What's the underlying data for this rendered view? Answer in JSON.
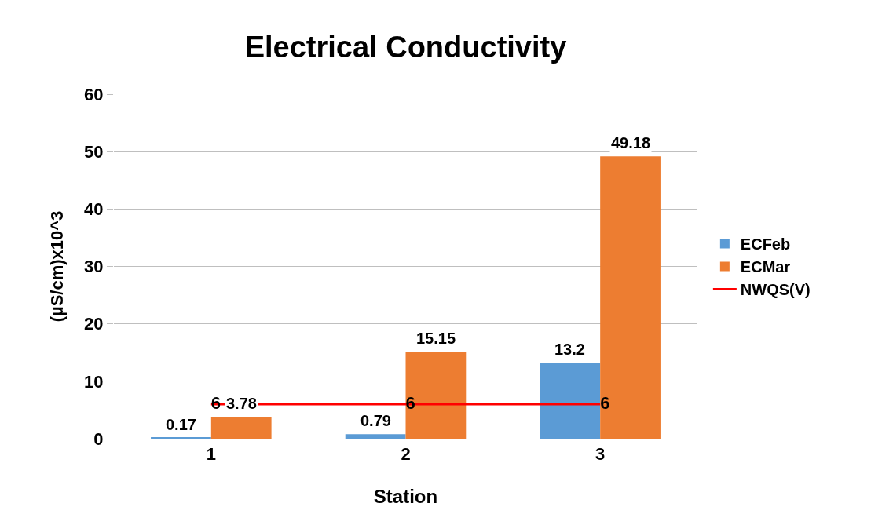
{
  "chart_data": {
    "type": "bar",
    "title": "Electrical Conductivity",
    "xlabel": "Station",
    "ylabel": "(µS/cm)x10^3",
    "categories": [
      "1",
      "2",
      "3"
    ],
    "series": [
      {
        "name": "ECFeb",
        "color": "#5b9bd5",
        "values": [
          0.17,
          0.79,
          13.2
        ]
      },
      {
        "name": "ECMar",
        "color": "#ed7d31",
        "values": [
          3.78,
          15.15,
          49.18
        ]
      },
      {
        "name": "NWQS(V)",
        "type": "line",
        "color": "#ff0000",
        "values": [
          6,
          6,
          6
        ],
        "marker": "none",
        "line_style": "solid"
      }
    ],
    "ylim": [
      0,
      60
    ],
    "yticks": [
      0,
      10,
      20,
      30,
      40,
      50,
      60
    ],
    "grid": "y",
    "legend": "right",
    "data_labels": true
  }
}
